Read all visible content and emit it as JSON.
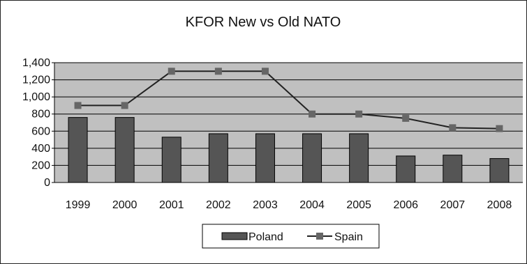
{
  "chart_data": {
    "type": "bar",
    "title": "KFOR New vs Old NATO",
    "xlabel": "",
    "ylabel": "",
    "categories": [
      "1999",
      "2000",
      "2001",
      "2002",
      "2003",
      "2004",
      "2005",
      "2006",
      "2007",
      "2008"
    ],
    "series": [
      {
        "name": "Poland",
        "type": "bar",
        "values": [
          760,
          760,
          530,
          570,
          570,
          570,
          570,
          310,
          320,
          280
        ],
        "color": "#555555"
      },
      {
        "name": "Spain",
        "type": "line",
        "values": [
          900,
          900,
          1300,
          1300,
          1300,
          800,
          800,
          750,
          640,
          630
        ],
        "color": "#666666"
      }
    ],
    "ylim": [
      0,
      1400
    ],
    "yticks": [
      "0",
      "200",
      "400",
      "600",
      "800",
      "1,000",
      "1,200",
      "1,400"
    ],
    "grid": true,
    "legend_position": "bottom",
    "plot_background": "#c0c0c0"
  }
}
